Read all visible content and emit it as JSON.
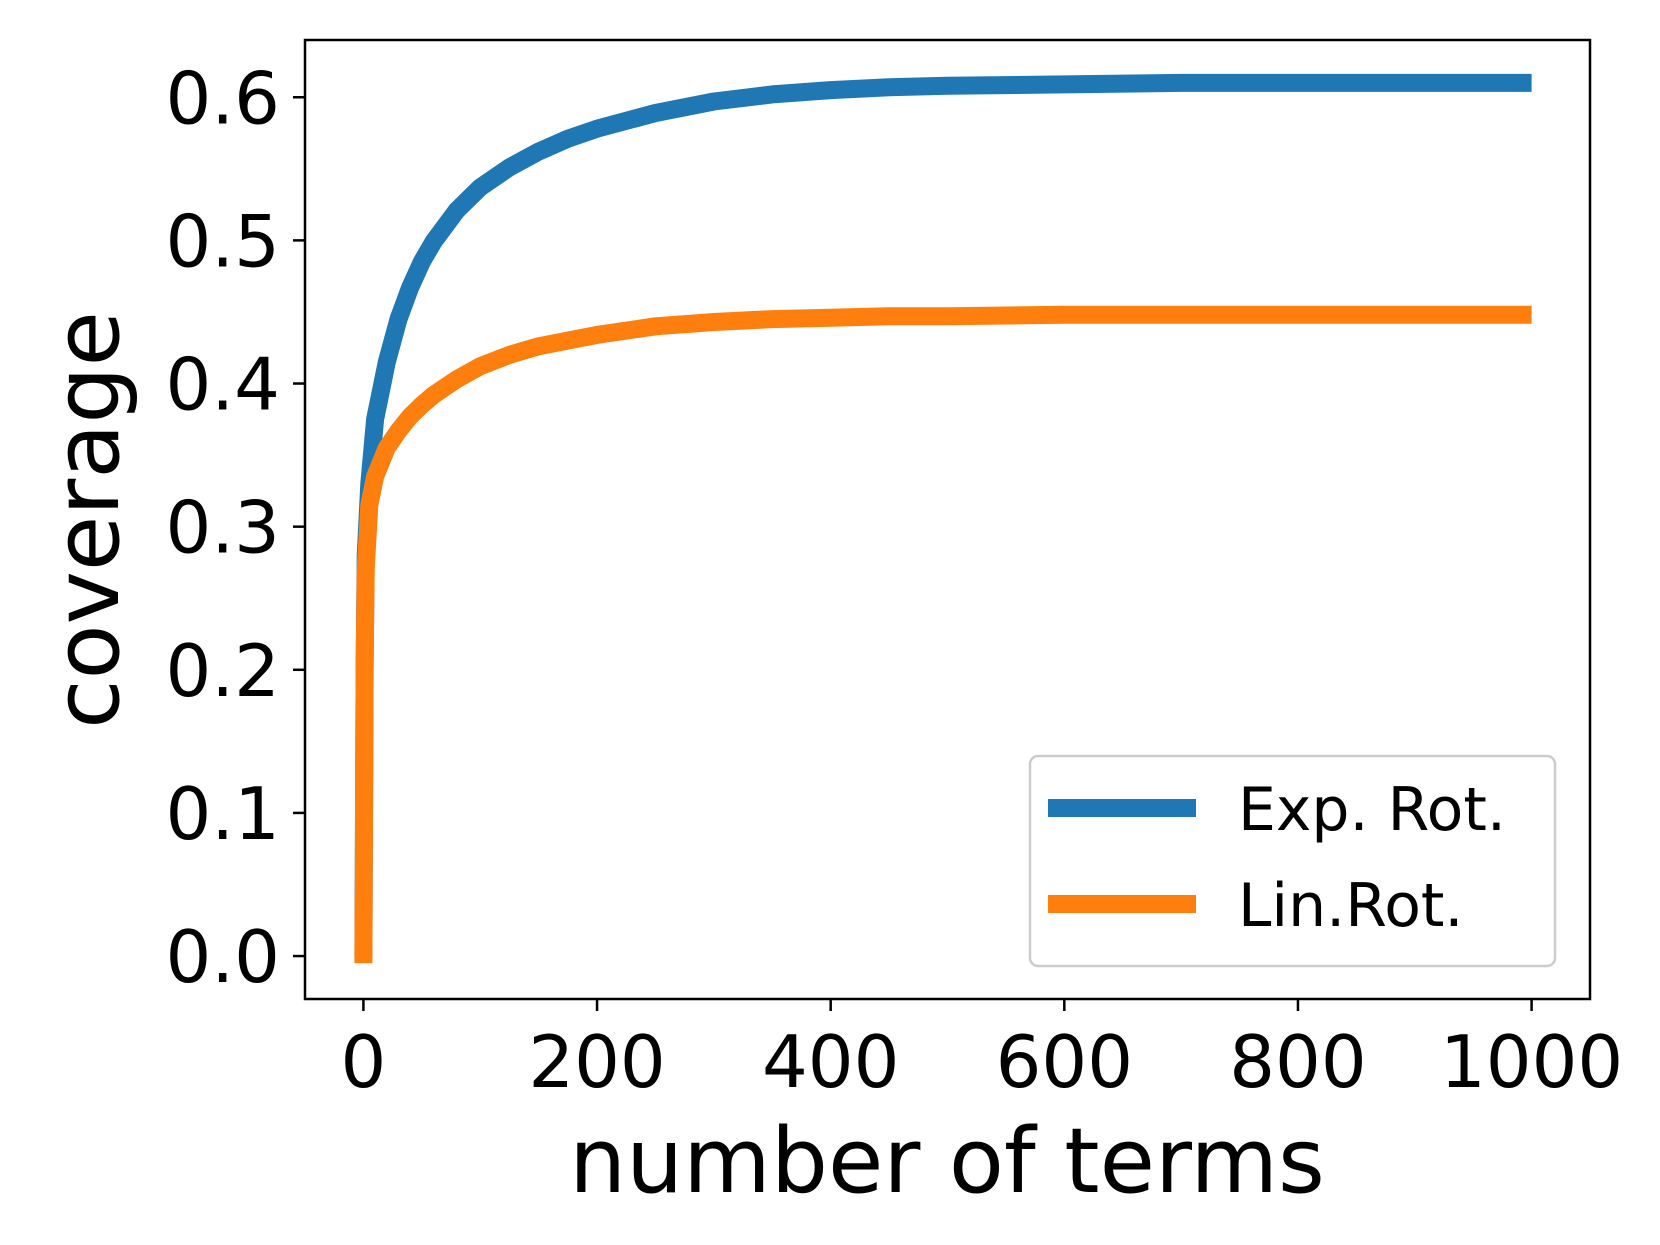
{
  "chart_data": {
    "type": "line",
    "title": "",
    "xlabel": "number of terms",
    "ylabel": "coverage",
    "xlim": [
      -50,
      1050
    ],
    "ylim": [
      -0.03,
      0.64
    ],
    "xticks": [
      0,
      200,
      400,
      600,
      800,
      1000
    ],
    "xtick_labels": [
      "0",
      "200",
      "400",
      "600",
      "800",
      "1000"
    ],
    "yticks": [
      0.0,
      0.1,
      0.2,
      0.3,
      0.4,
      0.5,
      0.6
    ],
    "ytick_labels": [
      "0.0",
      "0.1",
      "0.2",
      "0.3",
      "0.4",
      "0.5",
      "0.6"
    ],
    "grid": false,
    "legend_position": "lower-right",
    "series": [
      {
        "name": "Exp. Rot.",
        "color": "#1f77b4",
        "x": [
          0,
          1,
          2,
          5,
          10,
          20,
          30,
          40,
          50,
          60,
          80,
          100,
          125,
          150,
          175,
          200,
          250,
          300,
          350,
          400,
          450,
          500,
          600,
          700,
          800,
          900,
          1000
        ],
        "y": [
          0.0,
          0.2,
          0.28,
          0.33,
          0.375,
          0.415,
          0.445,
          0.467,
          0.485,
          0.499,
          0.521,
          0.537,
          0.551,
          0.562,
          0.571,
          0.578,
          0.589,
          0.597,
          0.602,
          0.605,
          0.607,
          0.608,
          0.609,
          0.61,
          0.61,
          0.61,
          0.61
        ]
      },
      {
        "name": "Lin.Rot.",
        "color": "#ff7f0e",
        "x": [
          0,
          1,
          2,
          5,
          10,
          20,
          30,
          40,
          50,
          60,
          80,
          100,
          125,
          150,
          175,
          200,
          250,
          300,
          350,
          400,
          450,
          500,
          600,
          700,
          800,
          900,
          1000
        ],
        "y": [
          -0.005,
          0.2,
          0.27,
          0.315,
          0.335,
          0.355,
          0.367,
          0.377,
          0.385,
          0.392,
          0.403,
          0.412,
          0.42,
          0.426,
          0.43,
          0.434,
          0.44,
          0.443,
          0.445,
          0.446,
          0.447,
          0.447,
          0.448,
          0.448,
          0.448,
          0.448,
          0.448
        ]
      }
    ]
  }
}
